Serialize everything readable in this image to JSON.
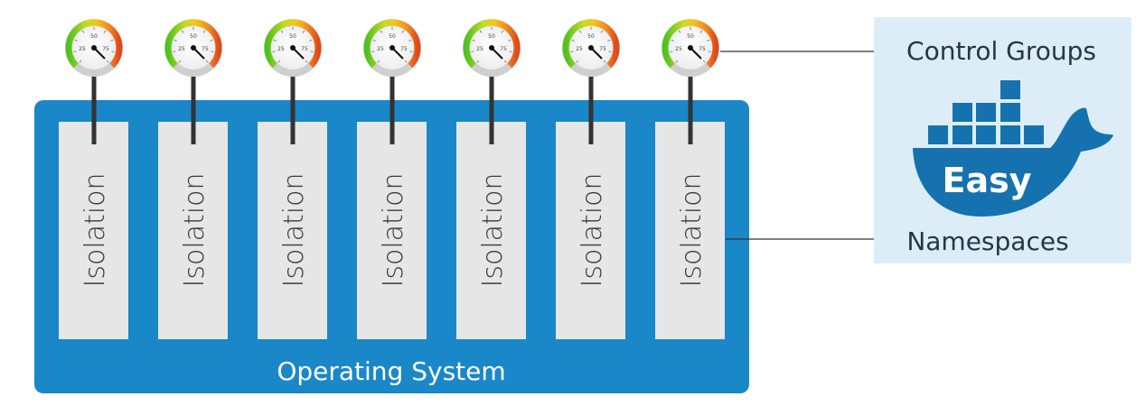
{
  "os_label": "Operating System",
  "containers": [
    {
      "label": "Isolation",
      "gauge_ticks": [
        "25",
        "50",
        "75"
      ]
    },
    {
      "label": "Isolation",
      "gauge_ticks": [
        "25",
        "50",
        "75"
      ]
    },
    {
      "label": "Isolation",
      "gauge_ticks": [
        "25",
        "50",
        "75"
      ]
    },
    {
      "label": "Isolation",
      "gauge_ticks": [
        "25",
        "50",
        "75"
      ]
    },
    {
      "label": "Isolation",
      "gauge_ticks": [
        "25",
        "50",
        "75"
      ]
    },
    {
      "label": "Isolation",
      "gauge_ticks": [
        "25",
        "50",
        "75"
      ]
    },
    {
      "label": "Isolation",
      "gauge_ticks": [
        "25",
        "50",
        "75"
      ]
    }
  ],
  "panel": {
    "top_label": "Control Groups",
    "logo_text": "Easy",
    "bottom_label": "Namespaces"
  },
  "colors": {
    "os_blue": "#1a87c8",
    "column_gray": "#e6e6e6",
    "panel_bg": "#dcedf8",
    "whale_blue": "#1572ae",
    "label_dark": "#243746",
    "connector": "#333333"
  }
}
